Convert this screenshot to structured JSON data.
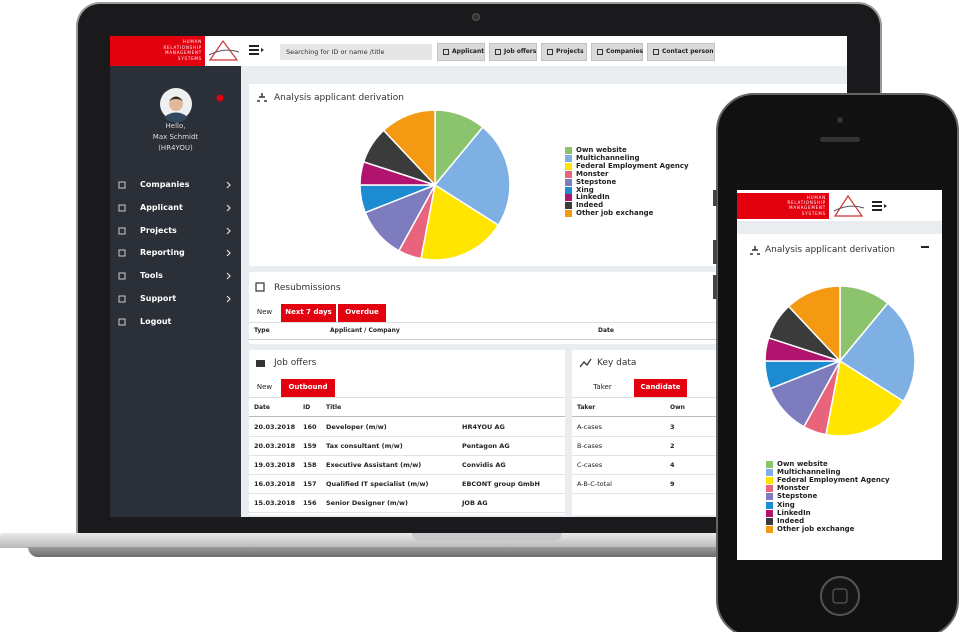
{
  "header": {
    "logo_lines": [
      "HUMAN",
      "RELATIONSHIP",
      "MANAGEMENT",
      "SYSTEMS"
    ],
    "search_placeholder": "Searching for ID or name /title",
    "nav": [
      "Applicant",
      "Job offers",
      "Projects",
      "Companies",
      "Contact person"
    ]
  },
  "user": {
    "greeting": "Hello,",
    "name": "Max Schmidt",
    "company": "(HR4YOU)"
  },
  "menu": [
    "Companies",
    "Applicant",
    "Projects",
    "Reporting",
    "Tools",
    "Support",
    "Logout"
  ],
  "chart_data": {
    "type": "pie",
    "title": "Analysis applicant derivation",
    "categories": [
      "Own website",
      "Multichanneling",
      "Federal Employment Agency",
      "Monster",
      "Stepstone",
      "Xing",
      "LinkedIn",
      "Indeed",
      "Other job exchange"
    ],
    "values": [
      11,
      23,
      19,
      5,
      11,
      6,
      5,
      8,
      12
    ],
    "colors": [
      "#8cc46e",
      "#7fb0e3",
      "#ffe500",
      "#e8647c",
      "#7d7cbf",
      "#1c8bd1",
      "#b0146f",
      "#3b3b3b",
      "#f49a12"
    ]
  },
  "resubmissions": {
    "title": "Resubmissions",
    "tabs": [
      "New",
      "Next 7 days",
      "Overdue"
    ],
    "columns": [
      "Type",
      "Applicant / Company",
      "Date"
    ]
  },
  "job_offers": {
    "title": "Job offers",
    "tabs": [
      "New",
      "Outbound"
    ],
    "columns": [
      "Date",
      "ID",
      "Title"
    ],
    "rows": [
      [
        "20.03.2018",
        160,
        "Developer (m/w)",
        "HR4YOU AG"
      ],
      [
        "20.03.2018",
        159,
        "Tax consultant (m/w)",
        "Pentagon AG"
      ],
      [
        "19.03.2018",
        158,
        "Executive Assistant (m/w)",
        "Convidis AG"
      ],
      [
        "16.03.2018",
        157,
        "Qualified IT specialist (m/w)",
        "EBCONT group GmbH"
      ],
      [
        "15.03.2018",
        156,
        "Senior Designer (m/w)",
        "JOB AG"
      ]
    ]
  },
  "key_data": {
    "title": "Key data",
    "tabs": [
      "Taker",
      "Candidate"
    ],
    "columns": [
      "Taker",
      "Own"
    ],
    "rows": [
      [
        "A-cases",
        3
      ],
      [
        "B-cases",
        2
      ],
      [
        "C-cases",
        4
      ],
      [
        "A-B-C-total",
        9
      ]
    ]
  }
}
